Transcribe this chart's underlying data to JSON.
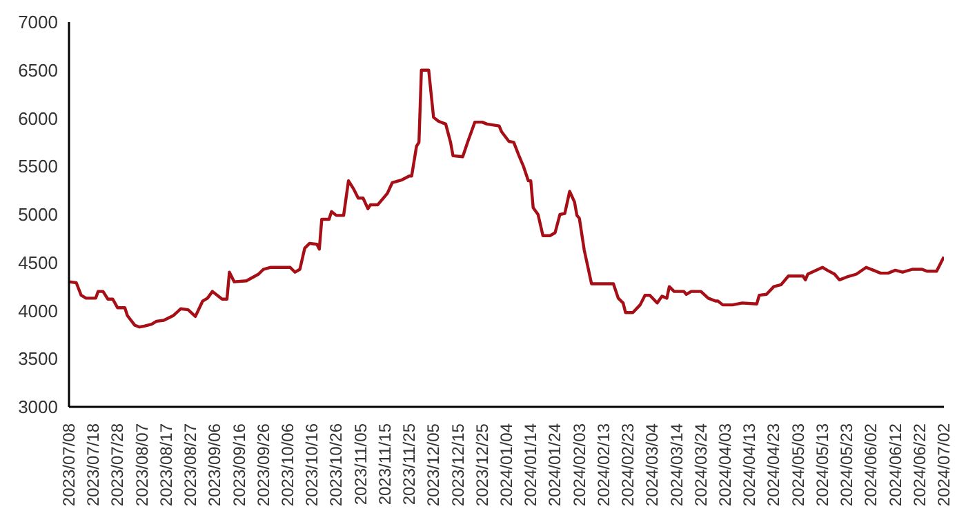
{
  "chart_data": {
    "type": "line",
    "x": [
      "2023-07-08",
      "2023-07-11",
      "2023-07-13",
      "2023-07-15",
      "2023-07-19",
      "2023-07-20",
      "2023-07-22",
      "2023-07-24",
      "2023-07-26",
      "2023-07-28",
      "2023-07-31",
      "2023-08-01",
      "2023-08-04",
      "2023-08-06",
      "2023-08-08",
      "2023-08-11",
      "2023-08-13",
      "2023-08-16",
      "2023-08-20",
      "2023-08-23",
      "2023-08-26",
      "2023-08-29",
      "2023-09-01",
      "2023-09-03",
      "2023-09-05",
      "2023-09-09",
      "2023-09-11",
      "2023-09-12",
      "2023-09-14",
      "2023-09-19",
      "2023-09-24",
      "2023-09-26",
      "2023-09-29",
      "2023-10-07",
      "2023-10-09",
      "2023-10-11",
      "2023-10-13",
      "2023-10-15",
      "2023-10-18",
      "2023-10-19",
      "2023-10-20",
      "2023-10-23",
      "2023-10-24",
      "2023-10-26",
      "2023-10-29",
      "2023-10-31",
      "2023-11-02",
      "2023-11-04",
      "2023-11-06",
      "2023-11-08",
      "2023-11-09",
      "2023-11-12",
      "2023-11-16",
      "2023-11-18",
      "2023-11-22",
      "2023-11-25",
      "2023-11-26",
      "2023-11-28",
      "2023-11-29",
      "2023-11-30",
      "2023-12-03",
      "2023-12-05",
      "2023-12-07",
      "2023-12-10",
      "2023-12-12",
      "2023-12-13",
      "2023-12-17",
      "2023-12-19",
      "2023-12-22",
      "2023-12-25",
      "2023-12-27",
      "2024-01-01",
      "2024-01-02",
      "2024-01-05",
      "2024-01-07",
      "2024-01-09",
      "2024-01-11",
      "2024-01-13",
      "2024-01-14",
      "2024-01-15",
      "2024-01-17",
      "2024-01-19",
      "2024-01-22",
      "2024-01-24",
      "2024-01-26",
      "2024-01-28",
      "2024-01-30",
      "2024-02-01",
      "2024-02-02",
      "2024-02-03",
      "2024-02-05",
      "2024-02-08",
      "2024-02-17",
      "2024-02-19",
      "2024-02-21",
      "2024-02-22",
      "2024-02-25",
      "2024-02-28",
      "2024-03-01",
      "2024-03-03",
      "2024-03-06",
      "2024-03-08",
      "2024-03-10",
      "2024-03-11",
      "2024-03-13",
      "2024-03-17",
      "2024-03-18",
      "2024-03-20",
      "2024-03-24",
      "2024-03-27",
      "2024-03-30",
      "2024-03-31",
      "2024-04-02",
      "2024-04-06",
      "2024-04-10",
      "2024-04-16",
      "2024-04-17",
      "2024-04-20",
      "2024-04-23",
      "2024-04-26",
      "2024-04-29",
      "2024-05-05",
      "2024-05-06",
      "2024-05-07",
      "2024-05-13",
      "2024-05-15",
      "2024-05-18",
      "2024-05-20",
      "2024-05-23",
      "2024-05-27",
      "2024-05-31",
      "2024-06-03",
      "2024-06-06",
      "2024-06-09",
      "2024-06-12",
      "2024-06-15",
      "2024-06-19",
      "2024-06-23",
      "2024-06-25",
      "2024-06-29",
      "2024-07-01",
      "2024-07-02"
    ],
    "series": [
      {
        "color": "#a50f15",
        "values": [
          4300,
          4290,
          4160,
          4130,
          4130,
          4200,
          4200,
          4120,
          4120,
          4030,
          4030,
          3950,
          3850,
          3830,
          3840,
          3860,
          3890,
          3900,
          3950,
          4020,
          4010,
          3940,
          4100,
          4130,
          4200,
          4120,
          4120,
          4400,
          4300,
          4310,
          4380,
          4430,
          4450,
          4450,
          4400,
          4430,
          4650,
          4700,
          4690,
          4640,
          4950,
          4950,
          5030,
          4990,
          4990,
          5350,
          5270,
          5170,
          5170,
          5060,
          5100,
          5100,
          5220,
          5330,
          5360,
          5400,
          5400,
          5710,
          5750,
          6500,
          6500,
          6010,
          5970,
          5940,
          5750,
          5610,
          5600,
          5750,
          5960,
          5960,
          5940,
          5920,
          5860,
          5760,
          5750,
          5620,
          5500,
          5350,
          5350,
          5070,
          5000,
          4780,
          4780,
          4810,
          5000,
          5010,
          5240,
          5130,
          4990,
          4960,
          4630,
          4280,
          4280,
          4130,
          4080,
          3980,
          3980,
          4060,
          4160,
          4160,
          4080,
          4150,
          4130,
          4250,
          4200,
          4200,
          4170,
          4200,
          4200,
          4130,
          4100,
          4100,
          4060,
          4060,
          4080,
          4070,
          4160,
          4170,
          4250,
          4270,
          4360,
          4360,
          4320,
          4380,
          4450,
          4420,
          4380,
          4320,
          4350,
          4380,
          4450,
          4420,
          4390,
          4390,
          4420,
          4400,
          4430,
          4430,
          4410,
          4410,
          4510,
          4560
        ]
      }
    ],
    "xlim": [
      "2023-07-08",
      "2024-07-02"
    ],
    "xticks": [
      {
        "value": "2023-07-08",
        "label": "2023/07/08"
      },
      {
        "value": "2023-07-18",
        "label": "2023/07/18"
      },
      {
        "value": "2023-07-28",
        "label": "2023/07/28"
      },
      {
        "value": "2023-08-07",
        "label": "2023/08/07"
      },
      {
        "value": "2023-08-17",
        "label": "2023/08/17"
      },
      {
        "value": "2023-08-27",
        "label": "2023/08/27"
      },
      {
        "value": "2023-09-06",
        "label": "2023/09/06"
      },
      {
        "value": "2023-09-16",
        "label": "2023/09/16"
      },
      {
        "value": "2023-09-26",
        "label": "2023/09/26"
      },
      {
        "value": "2023-10-06",
        "label": "2023/10/06"
      },
      {
        "value": "2023-10-16",
        "label": "2023/10/16"
      },
      {
        "value": "2023-10-26",
        "label": "2023/10/26"
      },
      {
        "value": "2023-11-05",
        "label": "2023/11/05"
      },
      {
        "value": "2023-11-15",
        "label": "2023/11/15"
      },
      {
        "value": "2023-11-25",
        "label": "2023/11/25"
      },
      {
        "value": "2023-12-05",
        "label": "2023/12/05"
      },
      {
        "value": "2023-12-15",
        "label": "2023/12/15"
      },
      {
        "value": "2023-12-25",
        "label": "2023/12/25"
      },
      {
        "value": "2024-01-04",
        "label": "2024/01/04"
      },
      {
        "value": "2024-01-14",
        "label": "2024/01/14"
      },
      {
        "value": "2024-01-24",
        "label": "2024/01/24"
      },
      {
        "value": "2024-02-03",
        "label": "2024/02/03"
      },
      {
        "value": "2024-02-13",
        "label": "2024/02/13"
      },
      {
        "value": "2024-02-23",
        "label": "2024/02/23"
      },
      {
        "value": "2024-03-04",
        "label": "2024/03/04"
      },
      {
        "value": "2024-03-14",
        "label": "2024/03/14"
      },
      {
        "value": "2024-03-24",
        "label": "2024/03/24"
      },
      {
        "value": "2024-04-03",
        "label": "2024/04/03"
      },
      {
        "value": "2024-04-13",
        "label": "2024/04/13"
      },
      {
        "value": "2024-04-23",
        "label": "2024/04/23"
      },
      {
        "value": "2024-05-03",
        "label": "2024/05/03"
      },
      {
        "value": "2024-05-13",
        "label": "2024/05/13"
      },
      {
        "value": "2024-05-23",
        "label": "2024/05/23"
      },
      {
        "value": "2024-06-02",
        "label": "2024/06/02"
      },
      {
        "value": "2024-06-12",
        "label": "2024/06/12"
      },
      {
        "value": "2024-06-22",
        "label": "2024/06/22"
      },
      {
        "value": "2024-07-02",
        "label": "2024/07/02"
      }
    ],
    "ylim": [
      3000,
      7000
    ],
    "yticks": [
      3000,
      3500,
      4000,
      4500,
      5000,
      5500,
      6000,
      6500,
      7000
    ],
    "grid": false,
    "legend": false,
    "marker": "none",
    "line_style": "solid"
  }
}
